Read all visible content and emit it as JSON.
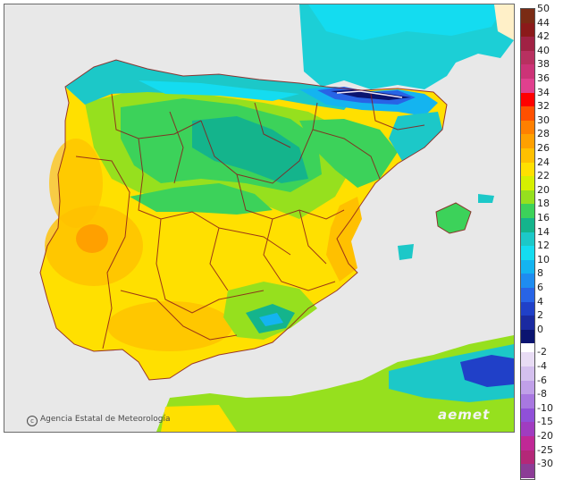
{
  "credit": {
    "symbol": "c",
    "text": "Agencia Estatal de Meteorología"
  },
  "logo": "aemet",
  "legend": {
    "items": [
      {
        "label": "50",
        "color": "#7a2b14"
      },
      {
        "label": "44",
        "color": "#8b1a1a"
      },
      {
        "label": "42",
        "color": "#a02244"
      },
      {
        "label": "40",
        "color": "#b83060"
      },
      {
        "label": "38",
        "color": "#cc3377"
      },
      {
        "label": "36",
        "color": "#e0408e"
      },
      {
        "label": "34",
        "color": "#ff0000"
      },
      {
        "label": "32",
        "color": "#ff5000"
      },
      {
        "label": "30",
        "color": "#ff8000"
      },
      {
        "label": "28",
        "color": "#ffa000"
      },
      {
        "label": "26",
        "color": "#ffc000"
      },
      {
        "label": "24",
        "color": "#ffe000"
      },
      {
        "label": "22",
        "color": "#d6f000"
      },
      {
        "label": "20",
        "color": "#96e01e"
      },
      {
        "label": "18",
        "color": "#3cd25a"
      },
      {
        "label": "16",
        "color": "#14b48c"
      },
      {
        "label": "14",
        "color": "#1cc8c8"
      },
      {
        "label": "12",
        "color": "#14dcf0"
      },
      {
        "label": "10",
        "color": "#14b4f0"
      },
      {
        "label": "8",
        "color": "#1e8cf0"
      },
      {
        "label": "6",
        "color": "#2864e6"
      },
      {
        "label": "4",
        "color": "#2040c8"
      },
      {
        "label": "2",
        "color": "#1a2aa0"
      },
      {
        "label": "0",
        "color": "#0a1470"
      },
      {
        "label": "-2",
        "color": "#e8dcf4"
      },
      {
        "label": "-4",
        "color": "#d4c0ee"
      },
      {
        "label": "-6",
        "color": "#c0a0e8"
      },
      {
        "label": "-8",
        "color": "#a878e0"
      },
      {
        "label": "-10",
        "color": "#9050d8"
      },
      {
        "label": "-15",
        "color": "#a03cc0"
      },
      {
        "label": "-20",
        "color": "#c02896"
      },
      {
        "label": "-25",
        "color": "#b42878"
      },
      {
        "label": "-30",
        "color": "#8c3c96"
      }
    ]
  }
}
